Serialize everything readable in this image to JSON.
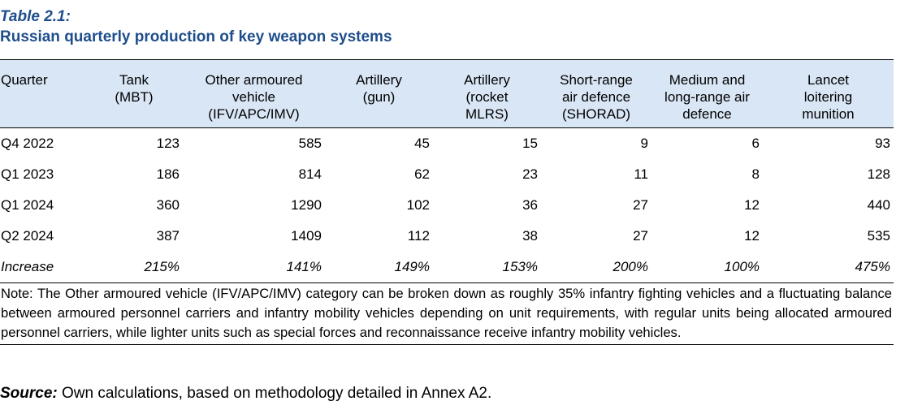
{
  "caption": {
    "number": "Table 2.1:",
    "title": "Russian quarterly production of key weapon systems"
  },
  "table": {
    "headers": [
      [
        "Quarter"
      ],
      [
        "Tank",
        "(MBT)"
      ],
      [
        "Other armoured",
        "vehicle",
        "(IFV/APC/IMV)"
      ],
      [
        "Artillery",
        "(gun)"
      ],
      [
        "Artillery",
        "(rocket",
        "MLRS)"
      ],
      [
        "Short-range",
        "air defence",
        "(SHORAD)"
      ],
      [
        "Medium and",
        "long-range air",
        "defence"
      ],
      [
        "Lancet",
        "loitering",
        "munition"
      ]
    ],
    "rows": [
      [
        "Q4 2022",
        "123",
        "585",
        "45",
        "15",
        "9",
        "6",
        "93"
      ],
      [
        "Q1 2023",
        "186",
        "814",
        "62",
        "23",
        "11",
        "8",
        "128"
      ],
      [
        "Q1 2024",
        "360",
        "1290",
        "102",
        "36",
        "27",
        "12",
        "440"
      ],
      [
        "Q2 2024",
        "387",
        "1409",
        "112",
        "38",
        "27",
        "12",
        "535"
      ]
    ],
    "increase_row": [
      "Increase",
      "215%",
      "141%",
      "149%",
      "153%",
      "200%",
      "100%",
      "475%"
    ],
    "note": "Note: The Other armoured vehicle (IFV/APC/IMV) category can be broken down as roughly 35% infantry fighting vehicles and a fluctuating balance between armoured personnel carriers and infantry mobility vehicles depending on unit requirements, with regular units being allocated armoured personnel carriers, while lighter units such as special forces and reconnaissance receive infantry mobility vehicles."
  },
  "source": {
    "label": "Source:",
    "text": " Own calculations, based on methodology detailed in Annex A2."
  }
}
